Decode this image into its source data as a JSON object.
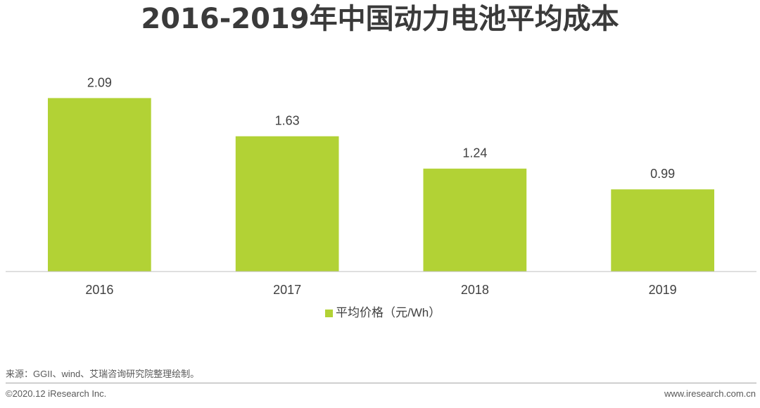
{
  "chart_data": {
    "type": "bar",
    "title": "2016-2019年中国动力电池平均成本",
    "categories": [
      "2016",
      "2017",
      "2018",
      "2019"
    ],
    "series": [
      {
        "name": "平均价格（元/Wh）",
        "values": [
          2.09,
          1.63,
          1.24,
          0.99
        ],
        "color": "#b2d235"
      }
    ],
    "ylim": [
      0,
      2.5
    ],
    "grid": false,
    "data_labels": true,
    "legend": "bottom-center"
  },
  "source": "来源：GGII、wind、艾瑞咨询研究院整理绘制。",
  "footer": {
    "copyright": "©2020.12 iResearch Inc.",
    "website": "www.iresearch.com.cn"
  },
  "colors": {
    "title": "#3a3a3a",
    "text": "#404040",
    "axis": "#bfbfbf"
  }
}
